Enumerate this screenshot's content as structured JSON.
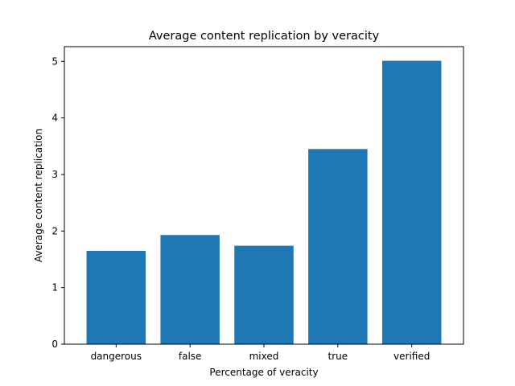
{
  "chart_data": {
    "type": "bar",
    "title": "Average content replication by veracity",
    "xlabel": "Percentage of veracity",
    "ylabel": "Average content replication",
    "categories": [
      "dangerous",
      "false",
      "mixed",
      "true",
      "verified"
    ],
    "values": [
      1.65,
      1.93,
      1.74,
      3.45,
      5.01
    ],
    "ylim": [
      0,
      5.26
    ],
    "yticks": [
      0,
      1,
      2,
      3,
      4,
      5
    ],
    "bar_color": "#1f77b4",
    "grid": false
  }
}
